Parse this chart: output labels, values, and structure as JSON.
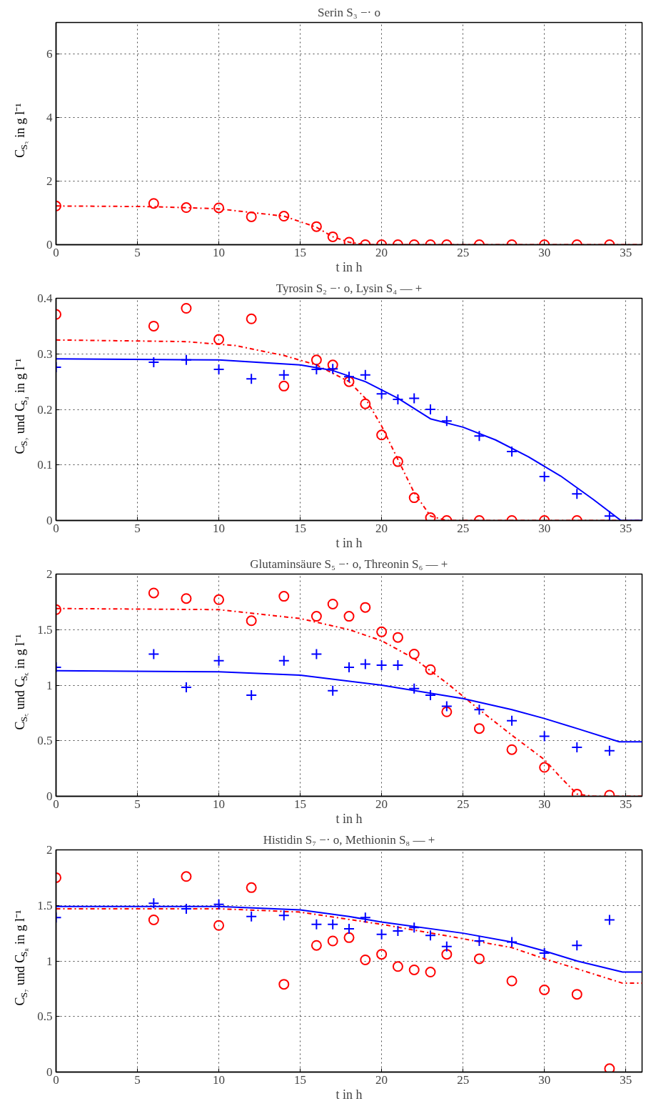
{
  "chart_data": [
    {
      "type": "scatter",
      "title": "Serin S₃ −· o",
      "xlabel": "t in h",
      "ylabel": "C$_{S₃}$ in g l⁻¹",
      "xlim": [
        0,
        36
      ],
      "xticks": [
        0,
        5,
        10,
        15,
        20,
        25,
        30,
        35
      ],
      "ylim": [
        0,
        7
      ],
      "yticks": [
        0,
        2,
        4,
        6
      ],
      "grid": true,
      "series": [
        {
          "type": "line",
          "color": "#ff0000",
          "line_style": "dashdot",
          "marker": "none",
          "x": [
            0,
            6,
            10,
            14,
            16,
            17,
            18,
            19,
            36
          ],
          "values": [
            1.22,
            1.2,
            1.13,
            0.9,
            0.55,
            0.25,
            0.08,
            0,
            0
          ]
        },
        {
          "type": "scatter",
          "color": "#ff0000",
          "marker": "circle",
          "x": [
            0,
            6,
            8,
            10,
            12,
            14,
            16,
            17,
            18,
            19,
            20,
            21,
            22,
            23,
            24,
            26,
            28,
            30,
            32,
            34
          ],
          "values": [
            1.22,
            1.3,
            1.17,
            1.16,
            0.88,
            0.9,
            0.57,
            0.25,
            0.08,
            0,
            0,
            0,
            0,
            0,
            0,
            0,
            0,
            0,
            0,
            0
          ]
        }
      ]
    },
    {
      "type": "scatter",
      "title": "Tyrosin S₂ −· o, Lysin S₄ — +",
      "xlabel": "t in h",
      "ylabel": "C$_{S₂}$ und C$_{S₄}$ in g l⁻¹",
      "xlim": [
        0,
        36
      ],
      "xticks": [
        0,
        5,
        10,
        15,
        20,
        25,
        30,
        35
      ],
      "ylim": [
        0,
        0.4
      ],
      "yticks": [
        0,
        0.1,
        0.2,
        0.3,
        0.4
      ],
      "grid": true,
      "series": [
        {
          "type": "line",
          "color": "#ff0000",
          "line_style": "dashdot",
          "marker": "none",
          "x": [
            0,
            8,
            11,
            14,
            16,
            18,
            19,
            20,
            21,
            22,
            23,
            24,
            36
          ],
          "values": [
            0.325,
            0.322,
            0.315,
            0.297,
            0.28,
            0.25,
            0.22,
            0.17,
            0.11,
            0.05,
            0.008,
            0,
            0
          ]
        },
        {
          "type": "line",
          "color": "#0000ff",
          "line_style": "solid",
          "marker": "none",
          "x": [
            0,
            10,
            15,
            17,
            19,
            21,
            23,
            25,
            27,
            29,
            31,
            33,
            34.7,
            36
          ],
          "values": [
            0.291,
            0.289,
            0.28,
            0.27,
            0.25,
            0.22,
            0.183,
            0.168,
            0.145,
            0.115,
            0.08,
            0.038,
            0,
            0
          ]
        },
        {
          "type": "scatter",
          "color": "#ff0000",
          "marker": "circle",
          "x": [
            0,
            6,
            8,
            10,
            12,
            14,
            16,
            17,
            18,
            19,
            20,
            21,
            22,
            23,
            24,
            26,
            28,
            30,
            32
          ],
          "values": [
            0.371,
            0.35,
            0.382,
            0.326,
            0.363,
            0.242,
            0.289,
            0.28,
            0.25,
            0.21,
            0.154,
            0.106,
            0.041,
            0.005,
            0,
            0,
            0,
            0,
            0
          ]
        },
        {
          "type": "scatter",
          "color": "#0000ff",
          "marker": "cross",
          "x": [
            0,
            6,
            8,
            10,
            12,
            14,
            16,
            17,
            18,
            19,
            20,
            21,
            22,
            23,
            24,
            26,
            28,
            30,
            32,
            34
          ],
          "values": [
            0.276,
            0.285,
            0.289,
            0.272,
            0.255,
            0.262,
            0.272,
            0.273,
            0.259,
            0.262,
            0.228,
            0.218,
            0.22,
            0.2,
            0.179,
            0.152,
            0.124,
            0.079,
            0.048,
            0.008
          ]
        }
      ]
    },
    {
      "type": "scatter",
      "title": "Glutaminsäure S₅ −· o, Threonin S₆ — +",
      "xlabel": "t in h",
      "ylabel": "C$_{S₅}$ und C$_{S₆}$ in g l⁻¹",
      "xlim": [
        0,
        36
      ],
      "xticks": [
        0,
        5,
        10,
        15,
        20,
        25,
        30,
        35
      ],
      "ylim": [
        0,
        2
      ],
      "yticks": [
        0,
        0.5,
        1,
        1.5,
        2
      ],
      "grid": true,
      "series": [
        {
          "type": "line",
          "color": "#ff0000",
          "line_style": "dashdot",
          "marker": "none",
          "x": [
            0,
            10,
            15,
            18,
            20,
            22,
            24,
            26,
            28,
            30,
            31,
            32,
            33,
            36
          ],
          "values": [
            1.69,
            1.68,
            1.6,
            1.5,
            1.4,
            1.24,
            1.02,
            0.78,
            0.55,
            0.33,
            0.17,
            0.02,
            0,
            0
          ]
        },
        {
          "type": "line",
          "color": "#0000ff",
          "line_style": "solid",
          "marker": "none",
          "x": [
            0,
            10,
            15,
            20,
            25,
            28,
            30,
            32,
            34.6,
            36
          ],
          "values": [
            1.13,
            1.12,
            1.09,
            1.0,
            0.88,
            0.78,
            0.7,
            0.61,
            0.49,
            0.49
          ]
        },
        {
          "type": "scatter",
          "color": "#ff0000",
          "marker": "circle",
          "x": [
            0,
            6,
            8,
            10,
            12,
            14,
            16,
            17,
            18,
            19,
            20,
            21,
            22,
            23,
            24,
            26,
            28,
            30,
            32,
            34
          ],
          "values": [
            1.68,
            1.83,
            1.78,
            1.77,
            1.58,
            1.8,
            1.62,
            1.73,
            1.62,
            1.7,
            1.48,
            1.43,
            1.28,
            1.14,
            0.76,
            0.61,
            0.42,
            0.26,
            0.02,
            0.01
          ]
        },
        {
          "type": "scatter",
          "color": "#0000ff",
          "marker": "cross",
          "x": [
            0,
            6,
            8,
            10,
            12,
            14,
            16,
            17,
            18,
            19,
            20,
            21,
            22,
            23,
            24,
            26,
            28,
            30,
            32,
            34
          ],
          "values": [
            1.16,
            1.28,
            0.98,
            1.22,
            0.91,
            1.22,
            1.28,
            0.95,
            1.16,
            1.19,
            1.18,
            1.18,
            0.97,
            0.91,
            0.81,
            0.78,
            0.68,
            0.54,
            0.44,
            0.41
          ]
        }
      ]
    },
    {
      "type": "scatter",
      "title": "Histidin S₇ −· o, Methionin S₈ — +",
      "xlabel": "t in h",
      "ylabel": "C$_{S₇}$ und C$_{S₈}$ in g l⁻¹",
      "xlim": [
        0,
        36
      ],
      "xticks": [
        0,
        5,
        10,
        15,
        20,
        25,
        30,
        35
      ],
      "ylim": [
        0,
        2
      ],
      "yticks": [
        0,
        0.5,
        1,
        1.5,
        2
      ],
      "grid": true,
      "series": [
        {
          "type": "line",
          "color": "#ff0000",
          "line_style": "dashdot",
          "marker": "none",
          "x": [
            0,
            10,
            15,
            20,
            25,
            28,
            30,
            32,
            34.8,
            36
          ],
          "values": [
            1.47,
            1.47,
            1.44,
            1.33,
            1.2,
            1.12,
            1.02,
            0.93,
            0.8,
            0.8
          ]
        },
        {
          "type": "line",
          "color": "#0000ff",
          "line_style": "solid",
          "marker": "none",
          "x": [
            0,
            10,
            15,
            18,
            20,
            25,
            28,
            30,
            32,
            34.8,
            36
          ],
          "values": [
            1.49,
            1.49,
            1.46,
            1.4,
            1.35,
            1.25,
            1.17,
            1.09,
            1.0,
            0.9,
            0.9
          ]
        },
        {
          "type": "scatter",
          "color": "#ff0000",
          "marker": "circle",
          "x": [
            0,
            6,
            8,
            10,
            12,
            14,
            16,
            17,
            18,
            19,
            20,
            21,
            22,
            23,
            24,
            26,
            28,
            30,
            32,
            34
          ],
          "values": [
            1.75,
            1.37,
            1.76,
            1.32,
            1.66,
            0.79,
            1.14,
            1.18,
            1.21,
            1.01,
            1.06,
            0.95,
            0.92,
            0.9,
            1.06,
            1.02,
            0.82,
            0.74,
            0.7,
            0.03
          ]
        },
        {
          "type": "scatter",
          "color": "#0000ff",
          "marker": "cross",
          "x": [
            0,
            6,
            8,
            10,
            12,
            14,
            16,
            17,
            18,
            19,
            20,
            21,
            22,
            23,
            24,
            26,
            28,
            30,
            32,
            34
          ],
          "values": [
            1.39,
            1.52,
            1.47,
            1.51,
            1.4,
            1.41,
            1.33,
            1.33,
            1.29,
            1.39,
            1.24,
            1.27,
            1.3,
            1.23,
            1.13,
            1.18,
            1.17,
            1.07,
            1.14,
            1.37
          ]
        }
      ]
    }
  ]
}
